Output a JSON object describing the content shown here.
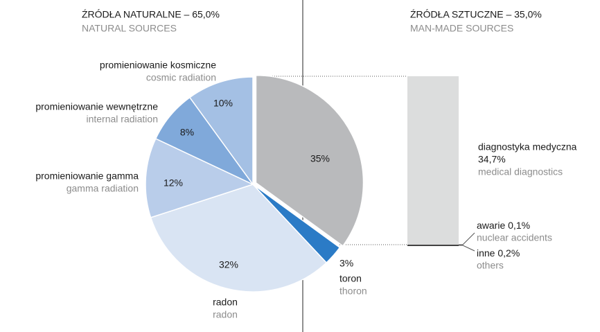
{
  "chart_data": [
    {
      "type": "pie",
      "title": "ŹRÓDŁA NATURALNE – 65,0%",
      "subtitle": "NATURAL SOURCES",
      "categories": [
        "",
        "toron",
        "radon",
        "promieniowanie gamma",
        "promieniowanie wewnętrzne",
        "promieniowanie kosmiczne"
      ],
      "categories_en": [
        "",
        "thoron",
        "radon",
        "gamma radiation",
        "internal radiation",
        "cosmic radiation"
      ],
      "values": [
        35,
        3,
        32,
        12,
        8,
        10
      ],
      "value_labels": [
        "35%",
        "3%",
        "32%",
        "12%",
        "8%",
        "10%"
      ],
      "colors": [
        "#b9babc",
        "#2b7bc6",
        "#d9e4f3",
        "#b9cdea",
        "#80a9da",
        "#a4c0e4"
      ]
    },
    {
      "type": "bar",
      "title": "ŹRÓDŁA SZTUCZNE – 35,0%",
      "subtitle": "MAN-MADE SOURCES",
      "categories": [
        "diagnostyka medyczna",
        "awarie",
        "inne"
      ],
      "categories_en": [
        "medical diagnostics",
        "nuclear accidents",
        "others"
      ],
      "values": [
        34.7,
        0.1,
        0.2
      ],
      "value_labels": [
        "34,7%",
        "0,1%",
        "0,2%"
      ],
      "colors": [
        "#dcdddd",
        "#555555",
        "#333333"
      ]
    }
  ]
}
